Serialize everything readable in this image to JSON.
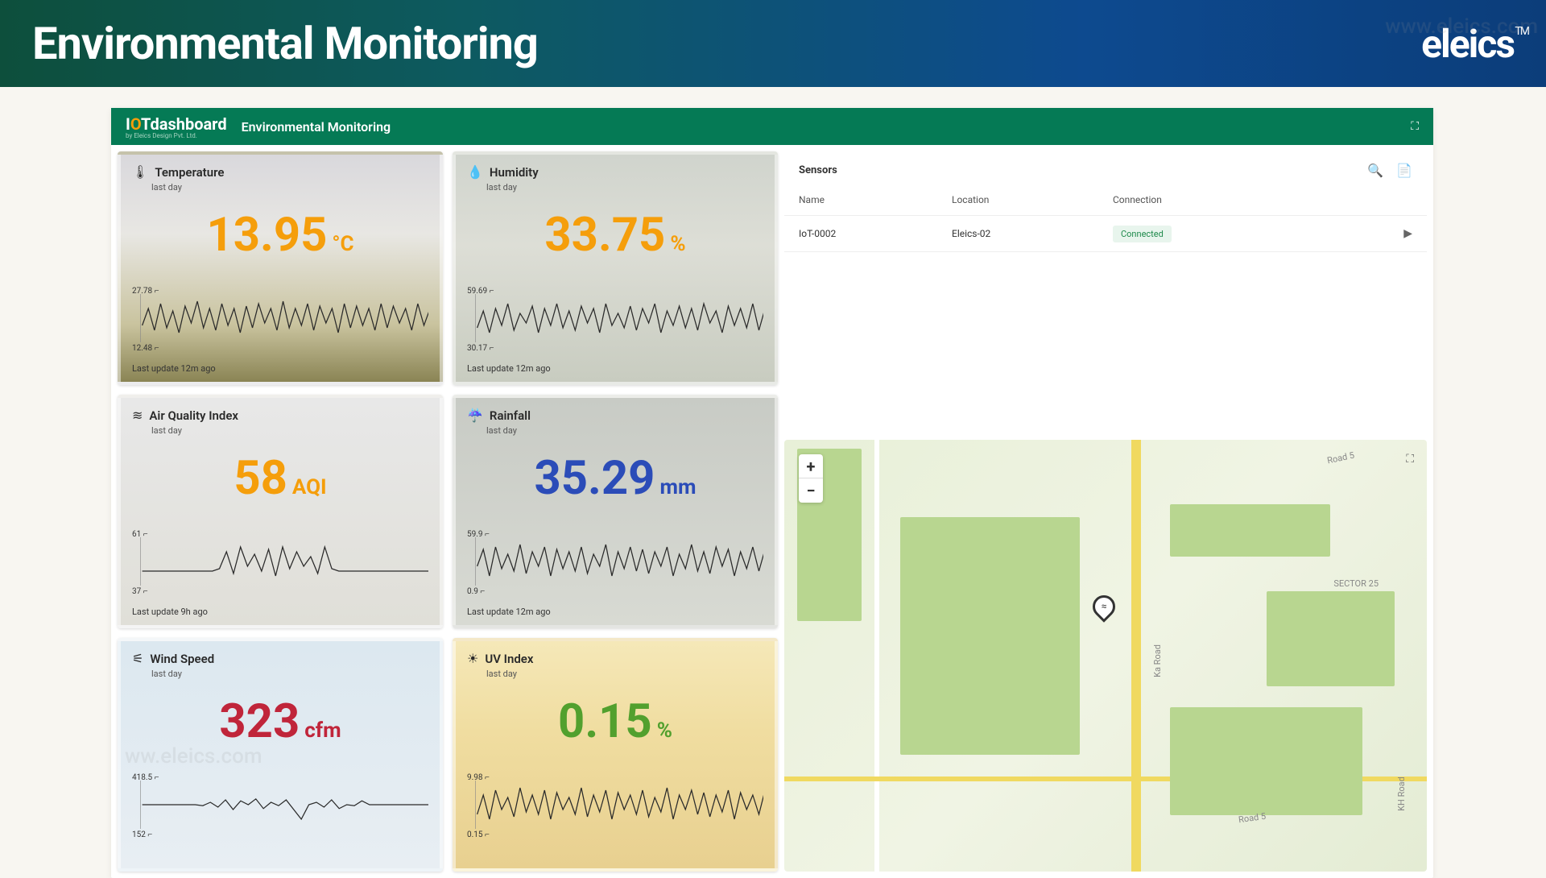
{
  "page": {
    "title": "Environmental Monitoring",
    "brand": "eleics",
    "brand_tm": "TM"
  },
  "dashboard": {
    "logo_primary": "I",
    "logo_accent": "O",
    "logo_rest": "Tdashboard",
    "logo_sub": "by Eleics Design Pvt. Ltd.",
    "title": "Environmental Monitoring"
  },
  "cards": [
    {
      "title": "Temperature",
      "sub": "last day",
      "value": "13.95",
      "unit": "°C",
      "color": "val-orange",
      "ymax": "27.78",
      "ymin": "12.48",
      "footer": "Last update 12m ago",
      "bg": "card-bg1",
      "series": [
        0.35,
        0.7,
        0.25,
        0.8,
        0.3,
        0.65,
        0.2,
        0.75,
        0.4,
        0.85,
        0.3,
        0.7,
        0.25,
        0.8,
        0.35,
        0.7,
        0.2,
        0.75,
        0.3,
        0.8,
        0.4,
        0.7,
        0.25,
        0.85,
        0.3,
        0.7,
        0.35,
        0.8,
        0.25,
        0.75,
        0.4,
        0.7,
        0.2,
        0.8,
        0.3,
        0.75,
        0.35,
        0.7,
        0.25,
        0.8,
        0.3,
        0.75,
        0.4,
        0.7,
        0.25,
        0.8,
        0.35,
        0.7
      ]
    },
    {
      "title": "Humidity",
      "sub": "last day",
      "value": "33.75",
      "unit": "%",
      "color": "val-orange",
      "ymax": "59.69",
      "ymin": "30.17",
      "footer": "Last update 12m ago",
      "bg": "card-bg2",
      "series": [
        0.3,
        0.65,
        0.2,
        0.7,
        0.35,
        0.8,
        0.25,
        0.6,
        0.4,
        0.75,
        0.2,
        0.7,
        0.35,
        0.8,
        0.3,
        0.65,
        0.25,
        0.75,
        0.4,
        0.7,
        0.2,
        0.8,
        0.35,
        0.6,
        0.3,
        0.75,
        0.25,
        0.7,
        0.4,
        0.8,
        0.2,
        0.65,
        0.35,
        0.75,
        0.3,
        0.7,
        0.25,
        0.8,
        0.4,
        0.65,
        0.2,
        0.75,
        0.35,
        0.7,
        0.3,
        0.8,
        0.25,
        0.7
      ]
    },
    {
      "title": "Air Quality Index",
      "sub": "last day",
      "value": "58",
      "unit": "AQI",
      "color": "val-orange",
      "ymax": "61",
      "ymin": "37",
      "footer": "Last update 9h ago",
      "bg": "card-bg3",
      "series": [
        0.3,
        0.3,
        0.3,
        0.3,
        0.3,
        0.3,
        0.3,
        0.3,
        0.3,
        0.3,
        0.3,
        0.35,
        0.7,
        0.25,
        0.8,
        0.4,
        0.65,
        0.3,
        0.75,
        0.2,
        0.8,
        0.35,
        0.7,
        0.4,
        0.6,
        0.25,
        0.8,
        0.35,
        0.3,
        0.3,
        0.3,
        0.3,
        0.3,
        0.3,
        0.3,
        0.3,
        0.3,
        0.3,
        0.3,
        0.3,
        0.3,
        0.3
      ]
    },
    {
      "title": "Rainfall",
      "sub": "last day",
      "value": "35.29",
      "unit": "mm",
      "color": "val-blue",
      "ymax": "59.9",
      "ymin": "0.9",
      "footer": "Last update 12m ago",
      "bg": "card-bg4",
      "series": [
        0.4,
        0.75,
        0.2,
        0.8,
        0.35,
        0.65,
        0.3,
        0.85,
        0.25,
        0.7,
        0.4,
        0.8,
        0.2,
        0.75,
        0.35,
        0.7,
        0.3,
        0.8,
        0.25,
        0.65,
        0.4,
        0.85,
        0.2,
        0.7,
        0.35,
        0.8,
        0.3,
        0.75,
        0.25,
        0.7,
        0.4,
        0.8,
        0.2,
        0.65,
        0.35,
        0.85,
        0.3,
        0.7,
        0.25,
        0.8,
        0.4,
        0.75,
        0.2,
        0.7,
        0.35,
        0.8,
        0.3,
        0.75
      ]
    },
    {
      "title": "Wind Speed",
      "sub": "last day",
      "value": "323",
      "unit": "cfm",
      "color": "val-red",
      "ymax": "418.5",
      "ymin": "152",
      "footer": "",
      "bg": "card-bg5",
      "series": [
        0.5,
        0.5,
        0.5,
        0.5,
        0.5,
        0.5,
        0.5,
        0.5,
        0.48,
        0.55,
        0.45,
        0.6,
        0.4,
        0.58,
        0.5,
        0.62,
        0.42,
        0.55,
        0.48,
        0.6,
        0.4,
        0.2,
        0.5,
        0.55,
        0.45,
        0.6,
        0.42,
        0.5,
        0.48,
        0.58,
        0.5,
        0.5,
        0.5,
        0.5,
        0.5,
        0.5,
        0.5,
        0.5,
        0.5
      ]
    },
    {
      "title": "UV Index",
      "sub": "last day",
      "value": "0.15",
      "unit": "%",
      "color": "val-green",
      "ymax": "9.98",
      "ymin": "0.15",
      "footer": "",
      "bg": "card-bg6",
      "series": [
        0.3,
        0.7,
        0.2,
        0.8,
        0.4,
        0.65,
        0.25,
        0.85,
        0.35,
        0.7,
        0.3,
        0.8,
        0.2,
        0.75,
        0.4,
        0.65,
        0.3,
        0.85,
        0.25,
        0.7,
        0.35,
        0.8,
        0.2,
        0.75,
        0.4,
        0.7,
        0.3,
        0.8,
        0.25,
        0.65,
        0.35,
        0.85,
        0.2,
        0.7,
        0.4,
        0.8,
        0.3,
        0.75,
        0.25,
        0.7,
        0.35,
        0.8,
        0.2,
        0.75,
        0.4,
        0.7,
        0.3,
        0.8
      ]
    }
  ],
  "sensors": {
    "title": "Sensors",
    "columns": {
      "name": "Name",
      "location": "Location",
      "connection": "Connection"
    },
    "rows": [
      {
        "name": "IoT-0002",
        "location": "Eleics-02",
        "connection": "Connected"
      }
    ]
  },
  "map": {
    "zoom_in": "+",
    "zoom_out": "−",
    "labels": {
      "sector25": "SECTOR 25",
      "road5a": "Road 5",
      "road5b": "Road 5",
      "kh_road": "KH Road",
      "ka_road": "Ka Road"
    }
  },
  "icons": {
    "temperature": "🌡",
    "humidity": "💧",
    "aqi": "≋",
    "rainfall": "☔",
    "wind": "⚟",
    "uv": "☀"
  },
  "colors": {
    "header_grad_start": "#0d4f3c",
    "header_grad_end": "#0c3d7a",
    "dash_header": "#057a55",
    "orange": "#f59e0b",
    "blue": "#2b4cb8",
    "red": "#c0253a",
    "green": "#52a02e",
    "connected_bg": "#e8f5ed",
    "connected_fg": "#1f8a4c"
  },
  "watermarks": {
    "w1": "www.eleics.com",
    "w2": "ww.eleics.com"
  }
}
